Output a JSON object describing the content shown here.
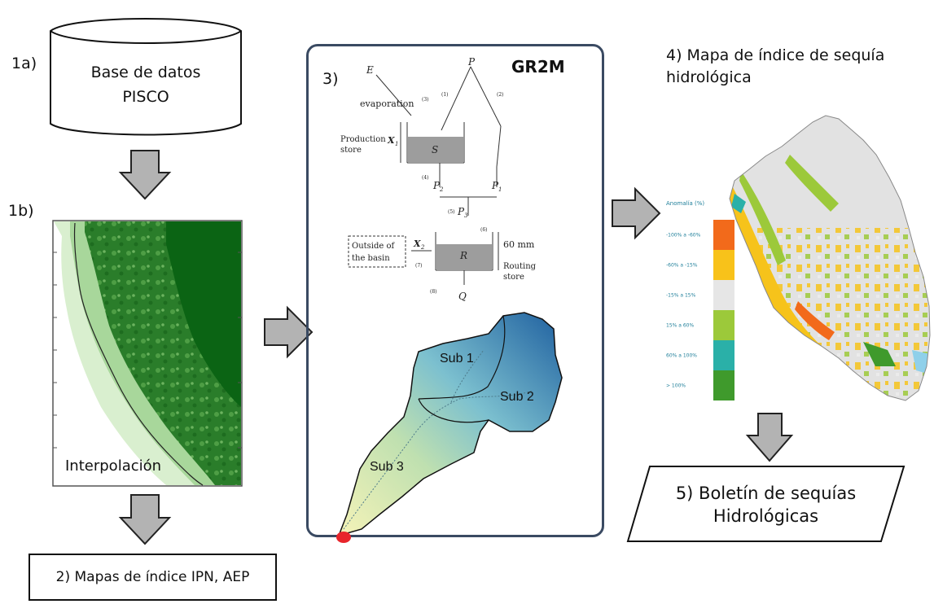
{
  "step_1a": {
    "label": "1a)",
    "box_lines": [
      "Base de datos",
      "PISCO"
    ]
  },
  "step_1b": {
    "label": "1b)",
    "map_caption": "Interpolación"
  },
  "step_2": {
    "box_text": "2) Mapas de índice IPN, AEP"
  },
  "step_3": {
    "label": "3)",
    "title": "GR2M",
    "schema": {
      "E": "E",
      "P": "P",
      "evaporation": "evaporation",
      "production_store": [
        "Production",
        "store"
      ],
      "X1": "X",
      "X1_sub": "1",
      "S": "S",
      "P2": "P",
      "P2_sub": "2",
      "P1": "P",
      "P1_sub": "1",
      "P3": "P",
      "P3_sub": "3",
      "outside": [
        "Outside of",
        "the basin"
      ],
      "X2": "X",
      "X2_sub": "2",
      "R": "R",
      "mm": "60 mm",
      "routing_store": [
        "Routing",
        "store"
      ],
      "Q": "Q",
      "steps": [
        "(1)",
        "(2)",
        "(3)",
        "(4)",
        "(5)",
        "(6)",
        "(7)",
        "(8)"
      ]
    },
    "basin": {
      "sub1": "Sub 1",
      "sub2": "Sub 2",
      "sub3": "Sub 3"
    }
  },
  "step_4": {
    "title_lines": [
      "4) Mapa de índice de sequía",
      "hidrológica"
    ],
    "legend_title": "Anomalía (%)",
    "legend": [
      {
        "label": "-100% a -60%",
        "color": "#f26a1b"
      },
      {
        "label": "-60% a -15%",
        "color": "#f8c21a"
      },
      {
        "label": "-15% a 15%",
        "color": "#e6e6e6"
      },
      {
        "label": "15% a 60%",
        "color": "#9cc93a"
      },
      {
        "label": "60% a 100%",
        "color": "#2ab0a8"
      },
      {
        "label": "> 100%",
        "color": "#3f9a2c"
      }
    ]
  },
  "step_5": {
    "box_lines": [
      "5) Boletín de sequías",
      "Hidrológicas"
    ]
  }
}
